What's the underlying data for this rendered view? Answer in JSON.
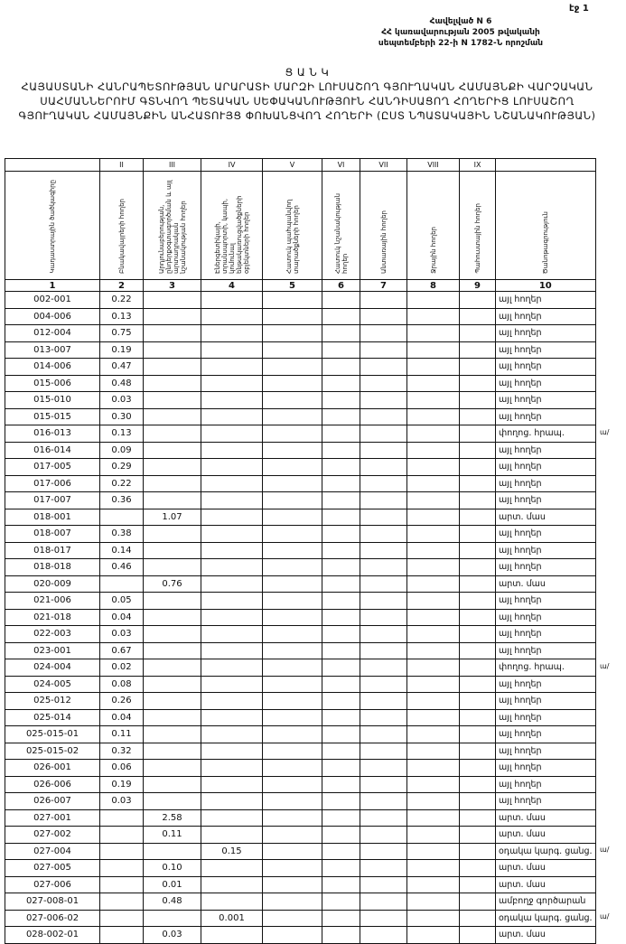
{
  "page_number": "էջ 1",
  "appendix": {
    "line1": "Հավելված N 6",
    "line2": "ՀՀ կառավարության 2005 թվականի",
    "line3": "սեպտեմբերի 22-ի N 1782-Ն որոշման"
  },
  "title": {
    "heading": "Ց Ա Ն Կ",
    "text": "ՀԱՅԱՍՏԱՆԻ ՀԱՆՐԱՊԵՏՈՒԹՅԱՆ ԱՐԱՐԱՏԻ ՄԱՐԶԻ ԼՈՒՍԱՇՈՂ ԳՅՈՒՂԱԿԱՆ ՀԱՄԱՅՆՔԻ ՎԱՐՉԱԿԱՆ ՍԱՀՄԱՆՆԵՐՈՒՄ ԳՏՆՎՈՂ ՊԵՏԱԿԱՆ ՍԵՓԱԿԱՆՈՒԹՅՈՒՆ ՀԱՆԴԻՍԱՑՈՂ ՀՈՂԵՐԻՑ ԼՈՒՍԱՇՈՂ ԳՅՈՒՂԱԿԱՆ ՀԱՄԱՅՆՔԻՆ ԱՆՀԱՏՈՒՅՑ ՓՈԽԱՆՑՎՈՂ ՀՈՂԵՐԻ (ԸՍՏ ՆՊԱՏԱԿԱՅԻՆ ՆՇԱՆԱԿՈՒԹՅԱՆ)"
  },
  "table": {
    "roman": [
      null,
      "II",
      "III",
      "IV",
      "V",
      "VI",
      "VII",
      "VIII",
      "IX",
      null
    ],
    "headers": [
      "Կադաստրային ծածկագիրը",
      "Բնակավայրերի հողեր",
      "Արդյունաբերության, ընդերքօգտագործման և այլ արտադրական նշանակության հողեր",
      "Էներգետիկայի, տրանսպորտի, կապի, կոմունալ ենթակառուցվածքների օբյեկտների հողեր",
      "Հատուկ պահպանվող տարածքների հողեր",
      "Հատուկ նշանակության հողեր",
      "Անտառային հողեր",
      "Ջրային հողեր",
      "Պահուստային հողեր",
      "Ծանոթագրություն"
    ],
    "numbers": [
      1,
      2,
      3,
      4,
      5,
      6,
      7,
      8,
      9,
      10
    ],
    "rows": [
      {
        "cells": [
          "002-001",
          "0.22",
          null,
          null,
          null,
          null,
          null,
          null,
          null,
          "այլ հողեր"
        ]
      },
      {
        "cells": [
          "004-006",
          "0.13",
          null,
          null,
          null,
          null,
          null,
          null,
          null,
          "այլ հողեր"
        ]
      },
      {
        "cells": [
          "012-004",
          "0.75",
          null,
          null,
          null,
          null,
          null,
          null,
          null,
          "այլ հողեր"
        ]
      },
      {
        "cells": [
          "013-007",
          "0.19",
          null,
          null,
          null,
          null,
          null,
          null,
          null,
          "այլ հողեր"
        ]
      },
      {
        "cells": [
          "014-006",
          "0.47",
          null,
          null,
          null,
          null,
          null,
          null,
          null,
          "այլ հողեր"
        ]
      },
      {
        "cells": [
          "015-006",
          "0.48",
          null,
          null,
          null,
          null,
          null,
          null,
          null,
          "այլ հողեր"
        ]
      },
      {
        "cells": [
          "015-010",
          "0.03",
          null,
          null,
          null,
          null,
          null,
          null,
          null,
          "այլ հողեր"
        ]
      },
      {
        "cells": [
          "015-015",
          "0.30",
          null,
          null,
          null,
          null,
          null,
          null,
          null,
          "այլ հողեր"
        ]
      },
      {
        "cells": [
          "016-013",
          "0.13",
          null,
          null,
          null,
          null,
          null,
          null,
          null,
          "փողոց. հրապ."
        ],
        "mark": "ա/"
      },
      {
        "cells": [
          "016-014",
          "0.09",
          null,
          null,
          null,
          null,
          null,
          null,
          null,
          "այլ հողեր"
        ]
      },
      {
        "cells": [
          "017-005",
          "0.29",
          null,
          null,
          null,
          null,
          null,
          null,
          null,
          "այլ հողեր"
        ]
      },
      {
        "cells": [
          "017-006",
          "0.22",
          null,
          null,
          null,
          null,
          null,
          null,
          null,
          "այլ հողեր"
        ]
      },
      {
        "cells": [
          "017-007",
          "0.36",
          null,
          null,
          null,
          null,
          null,
          null,
          null,
          "այլ հողեր"
        ]
      },
      {
        "cells": [
          "018-001",
          null,
          "1.07",
          null,
          null,
          null,
          null,
          null,
          null,
          "արտ. մաս"
        ]
      },
      {
        "cells": [
          "018-007",
          "0.38",
          null,
          null,
          null,
          null,
          null,
          null,
          null,
          "այլ հողեր"
        ]
      },
      {
        "cells": [
          "018-017",
          "0.14",
          null,
          null,
          null,
          null,
          null,
          null,
          null,
          "այլ հողեր"
        ]
      },
      {
        "cells": [
          "018-018",
          "0.46",
          null,
          null,
          null,
          null,
          null,
          null,
          null,
          "այլ հողեր"
        ]
      },
      {
        "cells": [
          "020-009",
          null,
          "0.76",
          null,
          null,
          null,
          null,
          null,
          null,
          "արտ. մաս"
        ]
      },
      {
        "cells": [
          "021-006",
          "0.05",
          null,
          null,
          null,
          null,
          null,
          null,
          null,
          "այլ հողեր"
        ]
      },
      {
        "cells": [
          "021-018",
          "0.04",
          null,
          null,
          null,
          null,
          null,
          null,
          null,
          "այլ հողեր"
        ]
      },
      {
        "cells": [
          "022-003",
          "0.03",
          null,
          null,
          null,
          null,
          null,
          null,
          null,
          "այլ հողեր"
        ]
      },
      {
        "cells": [
          "023-001",
          "0.67",
          null,
          null,
          null,
          null,
          null,
          null,
          null,
          "այլ հողեր"
        ]
      },
      {
        "cells": [
          "024-004",
          "0.02",
          null,
          null,
          null,
          null,
          null,
          null,
          null,
          "փողոց. հրապ."
        ],
        "mark": "ա/"
      },
      {
        "cells": [
          "024-005",
          "0.08",
          null,
          null,
          null,
          null,
          null,
          null,
          null,
          "այլ հողեր"
        ]
      },
      {
        "cells": [
          "025-012",
          "0.26",
          null,
          null,
          null,
          null,
          null,
          null,
          null,
          "այլ հողեր"
        ]
      },
      {
        "cells": [
          "025-014",
          "0.04",
          null,
          null,
          null,
          null,
          null,
          null,
          null,
          "այլ հողեր"
        ]
      },
      {
        "cells": [
          "025-015-01",
          "0.11",
          null,
          null,
          null,
          null,
          null,
          null,
          null,
          "այլ հողեր"
        ]
      },
      {
        "cells": [
          "025-015-02",
          "0.32",
          null,
          null,
          null,
          null,
          null,
          null,
          null,
          "այլ հողեր"
        ]
      },
      {
        "cells": [
          "026-001",
          "0.06",
          null,
          null,
          null,
          null,
          null,
          null,
          null,
          "այլ հողեր"
        ]
      },
      {
        "cells": [
          "026-006",
          "0.19",
          null,
          null,
          null,
          null,
          null,
          null,
          null,
          "այլ հողեր"
        ]
      },
      {
        "cells": [
          "026-007",
          "0.03",
          null,
          null,
          null,
          null,
          null,
          null,
          null,
          "այլ հողեր"
        ]
      },
      {
        "cells": [
          "027-001",
          null,
          "2.58",
          null,
          null,
          null,
          null,
          null,
          null,
          "արտ. մաս"
        ]
      },
      {
        "cells": [
          "027-002",
          null,
          "0.11",
          null,
          null,
          null,
          null,
          null,
          null,
          "արտ. մաս"
        ]
      },
      {
        "cells": [
          "027-004",
          null,
          null,
          "0.15",
          null,
          null,
          null,
          null,
          null,
          "օդակա կարգ. ցանց."
        ],
        "mark": "ա/"
      },
      {
        "cells": [
          "027-005",
          null,
          "0.10",
          null,
          null,
          null,
          null,
          null,
          null,
          "արտ. մաս"
        ]
      },
      {
        "cells": [
          "027-006",
          null,
          "0.01",
          null,
          null,
          null,
          null,
          null,
          null,
          "արտ. մաս"
        ]
      },
      {
        "cells": [
          "027-008-01",
          null,
          "0.48",
          null,
          null,
          null,
          null,
          null,
          null,
          "ամբողջ գործարան"
        ]
      },
      {
        "cells": [
          "027-006-02",
          null,
          null,
          "0.001",
          null,
          null,
          null,
          null,
          null,
          "օդակա կարգ. ցանց."
        ],
        "mark": "ա/"
      },
      {
        "cells": [
          "028-002-01",
          null,
          "0.03",
          null,
          null,
          null,
          null,
          null,
          null,
          "արտ. մաս"
        ]
      }
    ]
  }
}
